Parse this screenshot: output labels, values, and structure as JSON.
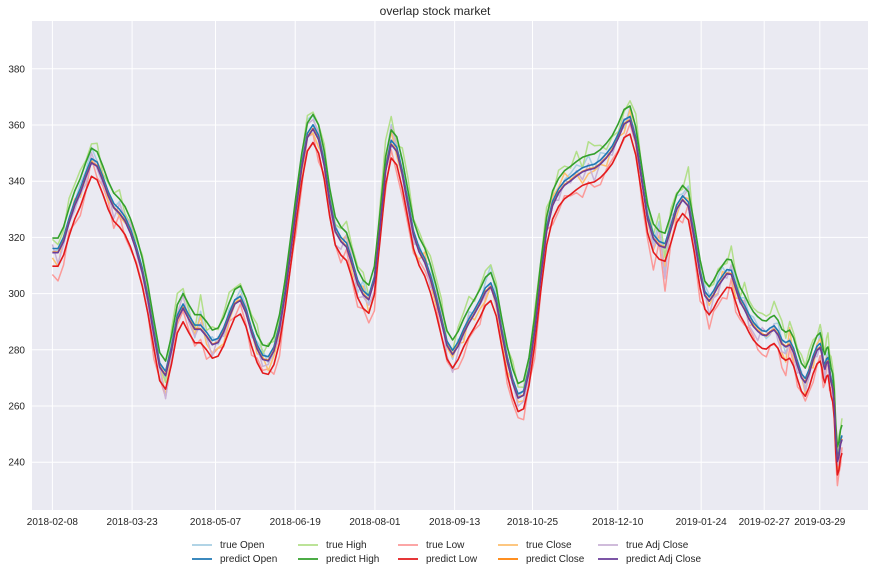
{
  "chart_data": {
    "type": "line",
    "title": "overlap stock market",
    "xlabel": "",
    "ylabel": "",
    "grid": true,
    "legend_position": "bottom",
    "x_ticks": [
      "2018-02-08",
      "2018-03-23",
      "2018-05-07",
      "2018-06-19",
      "2018-08-01",
      "2018-09-13",
      "2018-10-25",
      "2018-12-10",
      "2019-01-24",
      "2019-02-27",
      "2019-03-29"
    ],
    "y_ticks": [
      240,
      260,
      280,
      300,
      320,
      340,
      360,
      380
    ],
    "ylim": [
      223,
      397
    ],
    "x_anchor_dates": [
      "2018-02-08",
      "2018-03-23",
      "2018-05-07",
      "2018-06-19",
      "2018-08-01",
      "2018-09-13",
      "2018-10-25",
      "2018-12-10",
      "2019-01-24",
      "2019-02-27",
      "2019-03-29",
      "2019-04-10"
    ],
    "x_domain": [
      "2018-01-28",
      "2019-04-24"
    ],
    "base_close": [
      315,
      312,
      318,
      325,
      332,
      335,
      340,
      350,
      345,
      340,
      335,
      328,
      330,
      325,
      322,
      315,
      308,
      298,
      285,
      272,
      265,
      280,
      292,
      298,
      290,
      284,
      290,
      284,
      280,
      282,
      285,
      292,
      296,
      300,
      293,
      285,
      280,
      275,
      275,
      278,
      286,
      298,
      315,
      330,
      345,
      358,
      360,
      355,
      348,
      330,
      320,
      317,
      319,
      310,
      301,
      300,
      296,
      298,
      325,
      345,
      358,
      350,
      343,
      332,
      318,
      314,
      312,
      305,
      298,
      290,
      280,
      275,
      282,
      285,
      290,
      292,
      296,
      300,
      305,
      298,
      285,
      275,
      268,
      260,
      262,
      270,
      285,
      305,
      325,
      332,
      335,
      340,
      338,
      343,
      342,
      345,
      343,
      346,
      348,
      350,
      355,
      360,
      365,
      355,
      340,
      325,
      315,
      322,
      308,
      326,
      330,
      333,
      336,
      318,
      305,
      298,
      295,
      300,
      302,
      305,
      306,
      310,
      300,
      296,
      295,
      290,
      288,
      286,
      285,
      284,
      286,
      288,
      285,
      282,
      278,
      285,
      278,
      274,
      270,
      265,
      272,
      276,
      280,
      282,
      278,
      275,
      270,
      276,
      278,
      270,
      268,
      266,
      264,
      246,
      236,
      242,
      247,
      248
    ],
    "series": [
      {
        "name": "true Open",
        "offset": 2,
        "noise": 3.2,
        "color": "#a6cee3"
      },
      {
        "name": "predict Open",
        "offset": 1.8,
        "noise": 0,
        "color": "#1f78b4"
      },
      {
        "name": "true High",
        "offset": 6,
        "noise": 3.6,
        "color": "#b2df8a"
      },
      {
        "name": "predict High",
        "offset": 5.5,
        "noise": 0,
        "color": "#33a02c"
      },
      {
        "name": "true Low",
        "offset": -5,
        "noise": 3.6,
        "color": "#fb9a99"
      },
      {
        "name": "predict Low",
        "offset": -4.5,
        "noise": 0,
        "color": "#e31a1c"
      },
      {
        "name": "true Close",
        "offset": 0,
        "noise": 3.0,
        "color": "#fdbf6f"
      },
      {
        "name": "predict Close",
        "offset": 0.5,
        "noise": 0,
        "color": "#ff7f00"
      },
      {
        "name": "true Adj Close",
        "offset": 0,
        "noise": 3.0,
        "color": "#cab2d6"
      },
      {
        "name": "predict Adj Close",
        "offset": 0.3,
        "noise": 0,
        "color": "#6a3d9a"
      }
    ]
  }
}
